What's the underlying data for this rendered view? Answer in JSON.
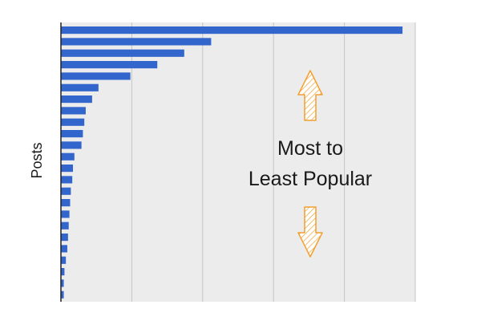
{
  "chart_data": {
    "type": "bar",
    "orientation": "horizontal",
    "ylabel": "Posts",
    "xlabel": "",
    "title": "",
    "xlim": [
      0,
      5
    ],
    "grid": "vertical",
    "bar_color": "#3366cc",
    "values": [
      4.82,
      2.12,
      1.74,
      1.36,
      0.98,
      0.53,
      0.44,
      0.35,
      0.33,
      0.31,
      0.29,
      0.19,
      0.17,
      0.16,
      0.14,
      0.13,
      0.12,
      0.11,
      0.1,
      0.09,
      0.07,
      0.05,
      0.04,
      0.04
    ],
    "annotation": {
      "lines": [
        "Most to",
        "Least Popular"
      ],
      "arrow_color": "#f0a030"
    }
  }
}
